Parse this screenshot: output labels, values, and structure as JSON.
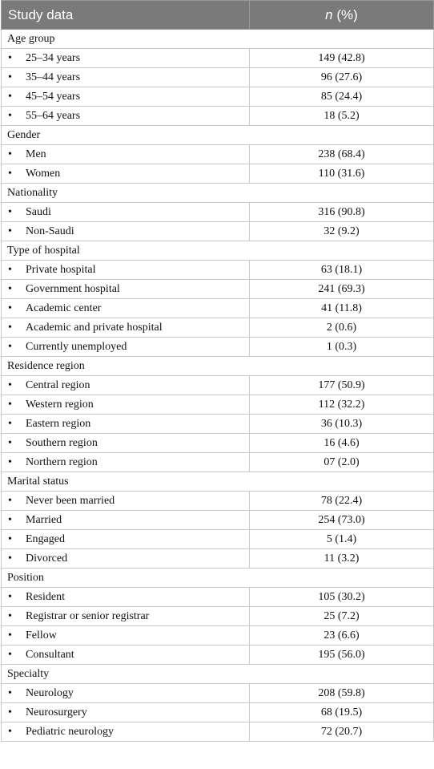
{
  "header": {
    "col1": "Study data",
    "col2_italic": "n",
    "col2_rest": " (%)"
  },
  "bullet": "•",
  "groups": [
    {
      "title": "Age group",
      "rows": [
        {
          "label": "25–34 years",
          "value": "149 (42.8)"
        },
        {
          "label": "35–44 years",
          "value": "96 (27.6)"
        },
        {
          "label": "45–54 years",
          "value": "85 (24.4)"
        },
        {
          "label": "55–64 years",
          "value": "18 (5.2)"
        }
      ]
    },
    {
      "title": "Gender",
      "rows": [
        {
          "label": "Men",
          "value": "238 (68.4)"
        },
        {
          "label": "Women",
          "value": "110 (31.6)"
        }
      ]
    },
    {
      "title": "Nationality",
      "rows": [
        {
          "label": "Saudi",
          "value": "316 (90.8)"
        },
        {
          "label": "Non-Saudi",
          "value": "32 (9.2)"
        }
      ]
    },
    {
      "title": "Type of hospital",
      "rows": [
        {
          "label": "Private hospital",
          "value": "63 (18.1)"
        },
        {
          "label": "Government hospital",
          "value": "241 (69.3)"
        },
        {
          "label": "Academic center",
          "value": "41 (11.8)"
        },
        {
          "label": "Academic and private hospital",
          "value": "2 (0.6)"
        },
        {
          "label": "Currently unemployed",
          "value": "1 (0.3)"
        }
      ]
    },
    {
      "title": "Residence region",
      "rows": [
        {
          "label": "Central region",
          "value": "177 (50.9)"
        },
        {
          "label": "Western region",
          "value": "112 (32.2)"
        },
        {
          "label": "Eastern region",
          "value": "36 (10.3)"
        },
        {
          "label": "Southern region",
          "value": "16 (4.6)"
        },
        {
          "label": "Northern region",
          "value": "07 (2.0)"
        }
      ]
    },
    {
      "title": "Marital status",
      "rows": [
        {
          "label": "Never been married",
          "value": "78 (22.4)"
        },
        {
          "label": "Married",
          "value": "254 (73.0)"
        },
        {
          "label": "Engaged",
          "value": "5 (1.4)"
        },
        {
          "label": "Divorced",
          "value": "11 (3.2)"
        }
      ]
    },
    {
      "title": "Position",
      "rows": [
        {
          "label": "Resident",
          "value": "105 (30.2)"
        },
        {
          "label": "Registrar or senior registrar",
          "value": "25 (7.2)"
        },
        {
          "label": "Fellow",
          "value": "23 (6.6)"
        },
        {
          "label": "Consultant",
          "value": "195 (56.0)"
        }
      ]
    },
    {
      "title": "Specialty",
      "rows": [
        {
          "label": "Neurology",
          "value": "208 (59.8)"
        },
        {
          "label": "Neurosurgery",
          "value": "68 (19.5)"
        },
        {
          "label": "Pediatric neurology",
          "value": "72 (20.7)"
        }
      ]
    }
  ]
}
